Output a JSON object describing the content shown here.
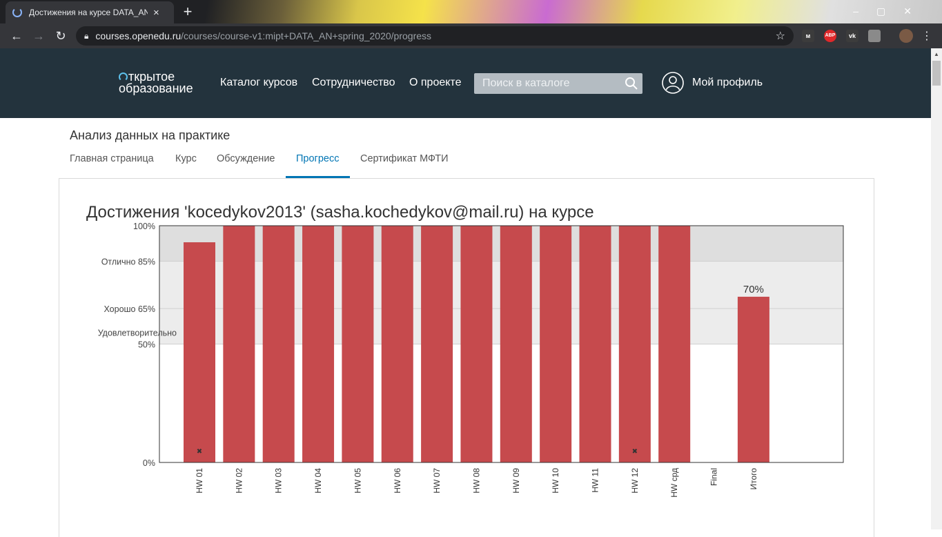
{
  "browser": {
    "tab_title": "Достижения на курсе DATA_AN",
    "tab_close": "×",
    "new_tab": "+",
    "window_controls": "–▢✕",
    "url_host": "courses.openedu.ru",
    "url_path": "/courses/course-v1:mipt+DATA_AN+spring_2020/progress",
    "extensions": [
      {
        "label": "м",
        "color": "#3c3c3c"
      },
      {
        "label": "ABP",
        "color": "#e0282a"
      },
      {
        "label": "vk",
        "color": "#3c3c3c"
      },
      {
        "label": "",
        "color": "#8a8a8a"
      }
    ]
  },
  "site": {
    "logo_line1": "ткрытое",
    "logo_line2": "образование",
    "nav": [
      "Каталог курсов",
      "Сотрудничество",
      "О проекте"
    ],
    "search_placeholder": "Поиск в каталоге",
    "profile_label": "Мой профиль"
  },
  "course": {
    "title": "Анализ данных на практике",
    "tabs": [
      "Главная страница",
      "Курс",
      "Обсуждение",
      "Прогресс",
      "Сертификат МФТИ"
    ],
    "active_tab": 3
  },
  "progress_title": "Достижения 'kocedykov2013' (sasha.kochedykov@mail.ru) на курсе",
  "chart_data": {
    "type": "bar",
    "categories": [
      "HW 01",
      "HW 02",
      "HW 03",
      "HW 04",
      "HW 05",
      "HW 06",
      "HW 07",
      "HW 08",
      "HW 09",
      "HW 10",
      "HW 11",
      "HW 12",
      "HW срд",
      "Final",
      "Итого"
    ],
    "values": [
      93,
      100,
      100,
      100,
      100,
      100,
      100,
      100,
      100,
      100,
      100,
      100,
      100,
      0,
      70
    ],
    "dropped": [
      true,
      false,
      false,
      false,
      false,
      false,
      false,
      false,
      false,
      false,
      false,
      true,
      false,
      false,
      false
    ],
    "ylim": [
      0,
      100
    ],
    "y_ticks": [
      {
        "value": 100,
        "label": "100%"
      },
      {
        "value": 85,
        "label": "Отлично 85%"
      },
      {
        "value": 65,
        "label": "Хорошо 65%"
      },
      {
        "value": 50,
        "label": "50%"
      },
      {
        "value": 0,
        "label": "0%"
      }
    ],
    "grade_band_label": "Удовлетворительно",
    "total_label": "70%",
    "bands": [
      {
        "from": 85,
        "to": 100,
        "color": "#dedede"
      },
      {
        "from": 50,
        "to": 85,
        "color": "#ececec"
      }
    ],
    "bar_color": "#c64a4d",
    "drop_marker": "✖"
  }
}
